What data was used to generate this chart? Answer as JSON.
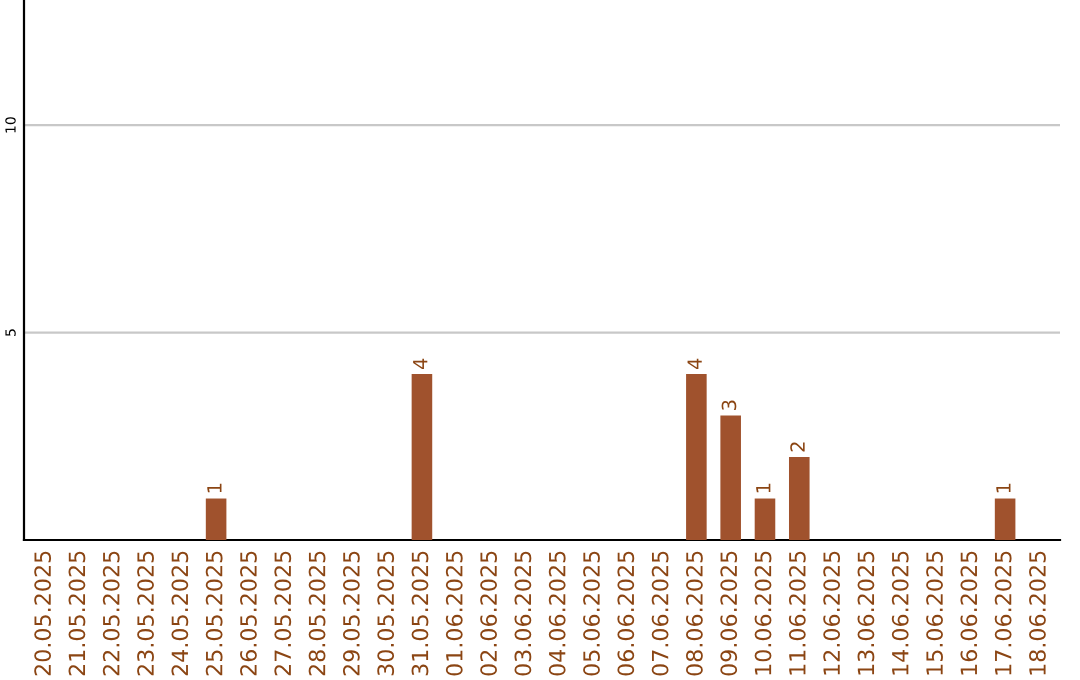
{
  "chart_data": {
    "type": "bar",
    "categories": [
      "20.05.2025",
      "21.05.2025",
      "22.05.2025",
      "23.05.2025",
      "24.05.2025",
      "25.05.2025",
      "26.05.2025",
      "27.05.2025",
      "28.05.2025",
      "29.05.2025",
      "30.05.2025",
      "31.05.2025",
      "01.06.2025",
      "02.06.2025",
      "03.06.2025",
      "04.06.2025",
      "05.06.2025",
      "06.06.2025",
      "07.06.2025",
      "08.06.2025",
      "09.06.2025",
      "10.06.2025",
      "11.06.2025",
      "12.06.2025",
      "13.06.2025",
      "14.06.2025",
      "15.06.2025",
      "16.06.2025",
      "17.06.2025",
      "18.06.2025"
    ],
    "values": [
      0,
      0,
      0,
      0,
      0,
      1,
      0,
      0,
      0,
      0,
      0,
      4,
      0,
      0,
      0,
      0,
      0,
      0,
      0,
      4,
      3,
      1,
      2,
      0,
      0,
      0,
      0,
      0,
      1,
      0
    ],
    "value_labels": [
      null,
      null,
      null,
      null,
      null,
      "1",
      null,
      null,
      null,
      null,
      null,
      "4",
      null,
      null,
      null,
      null,
      null,
      null,
      null,
      "4",
      "3",
      "1",
      "2",
      null,
      null,
      null,
      null,
      null,
      "1",
      null
    ],
    "color": "#a0522d",
    "ylim": [
      0,
      13
    ],
    "yticks": [
      5,
      10
    ],
    "grid": "y"
  }
}
